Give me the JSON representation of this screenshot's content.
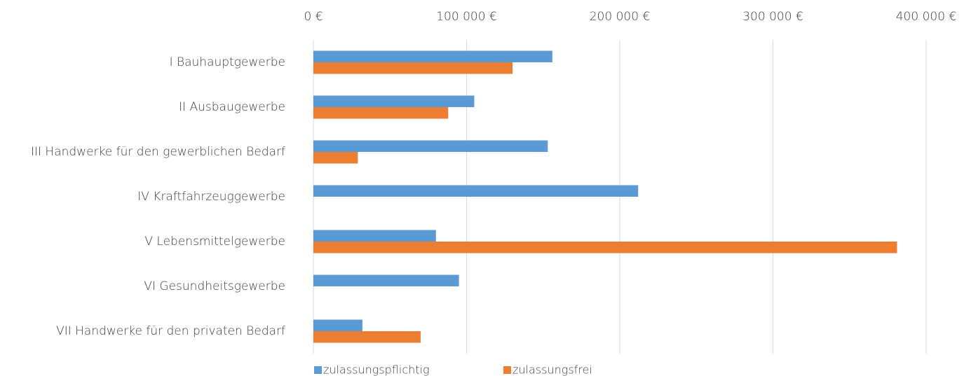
{
  "chart_data": {
    "type": "hbar",
    "categories": [
      "I Bauhauptgewerbe",
      "II Ausbaugewerbe",
      "III Handwerke für den gewerblichen Bedarf",
      "IV Kraftfahrzeuggewerbe",
      "V Lebensmittelgewerbe",
      "VI Gesundheitsgewerbe",
      "VII Handwerke für den privaten Bedarf"
    ],
    "series": [
      {
        "name": "zulassungspflichtig",
        "color": "#5b9bd5",
        "values": [
          156000,
          105000,
          153000,
          212000,
          80000,
          95000,
          32000
        ]
      },
      {
        "name": "zulassungsfrei",
        "color": "#ed7d31",
        "values": [
          130000,
          88000,
          29000,
          null,
          381000,
          null,
          70000
        ]
      }
    ],
    "xlim": [
      0,
      400000
    ],
    "xticks": [
      {
        "value": 0,
        "label": "0 €"
      },
      {
        "value": 100000,
        "label": "100 000 €"
      },
      {
        "value": 200000,
        "label": "200 000 €"
      },
      {
        "value": 300000,
        "label": "300 000 €"
      },
      {
        "value": 400000,
        "label": "400 000 €"
      }
    ],
    "grid": true,
    "legend": "bottom"
  }
}
